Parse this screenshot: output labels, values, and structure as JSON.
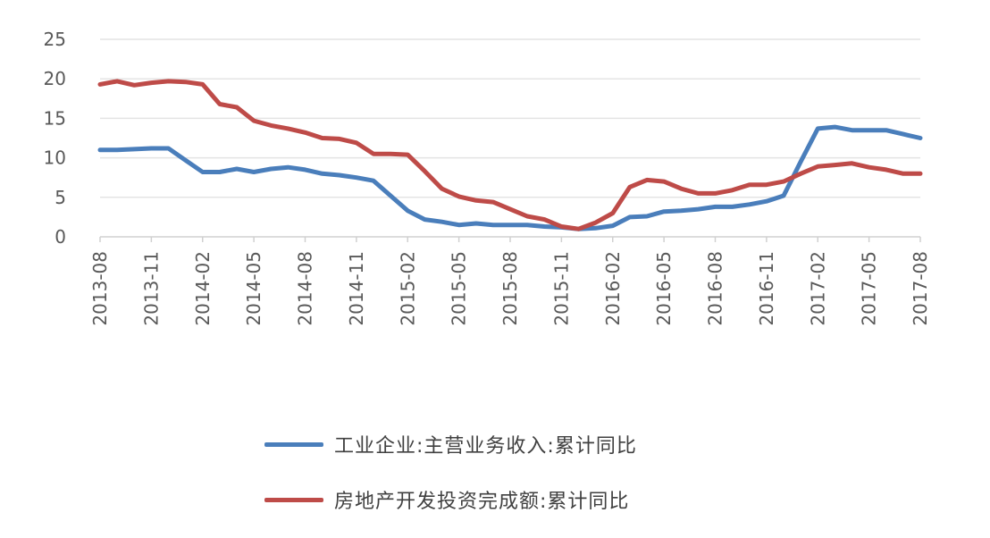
{
  "chart_data": {
    "type": "line",
    "ylim": [
      0,
      25
    ],
    "yticks": [
      0,
      5,
      10,
      15,
      20,
      25
    ],
    "grid": true,
    "legend_position": "bottom",
    "x": [
      "2013-08",
      "2013-09",
      "2013-10",
      "2013-11",
      "2013-12",
      "2014-01",
      "2014-02",
      "2014-03",
      "2014-04",
      "2014-05",
      "2014-06",
      "2014-07",
      "2014-08",
      "2014-09",
      "2014-10",
      "2014-11",
      "2014-12",
      "2015-01",
      "2015-02",
      "2015-03",
      "2015-04",
      "2015-05",
      "2015-06",
      "2015-07",
      "2015-08",
      "2015-09",
      "2015-10",
      "2015-11",
      "2015-12",
      "2016-01",
      "2016-02",
      "2016-03",
      "2016-04",
      "2016-05",
      "2016-06",
      "2016-07",
      "2016-08",
      "2016-09",
      "2016-10",
      "2016-11",
      "2016-12",
      "2017-01",
      "2017-02",
      "2017-03",
      "2017-04",
      "2017-05",
      "2017-06",
      "2017-07",
      "2017-08"
    ],
    "x_tick_labels": [
      "2013-08",
      "2013-11",
      "2014-02",
      "2014-05",
      "2014-08",
      "2014-11",
      "2015-02",
      "2015-05",
      "2015-08",
      "2015-11",
      "2016-02",
      "2016-05",
      "2016-08",
      "2016-11",
      "2017-02",
      "2017-05",
      "2017-08"
    ],
    "series": [
      {
        "name": "工业企业:主营业务收入:累计同比",
        "color": "#4a7ebb",
        "values": [
          11.0,
          11.0,
          11.1,
          11.2,
          11.2,
          9.7,
          8.2,
          8.2,
          8.6,
          8.2,
          8.6,
          8.8,
          8.5,
          8.0,
          7.8,
          7.5,
          7.1,
          5.2,
          3.3,
          2.2,
          1.9,
          1.5,
          1.7,
          1.5,
          1.5,
          1.5,
          1.3,
          1.2,
          1.0,
          1.1,
          1.4,
          2.5,
          2.6,
          3.2,
          3.3,
          3.5,
          3.8,
          3.8,
          4.1,
          4.5,
          5.2,
          9.5,
          13.7,
          13.9,
          13.5,
          13.5,
          13.5,
          13.0,
          12.5
        ]
      },
      {
        "name": "房地产开发投资完成额:累计同比",
        "color": "#be4b48",
        "values": [
          19.3,
          19.7,
          19.2,
          19.5,
          19.7,
          19.6,
          19.3,
          16.8,
          16.4,
          14.7,
          14.1,
          13.7,
          13.2,
          12.5,
          12.4,
          11.9,
          10.5,
          10.5,
          10.4,
          8.3,
          6.1,
          5.1,
          4.6,
          4.4,
          3.5,
          2.6,
          2.2,
          1.3,
          1.0,
          1.8,
          3.0,
          6.3,
          7.2,
          7.0,
          6.1,
          5.5,
          5.5,
          5.9,
          6.6,
          6.6,
          7.0,
          8.0,
          8.9,
          9.1,
          9.3,
          8.8,
          8.5,
          8.0,
          8.0
        ]
      }
    ]
  }
}
